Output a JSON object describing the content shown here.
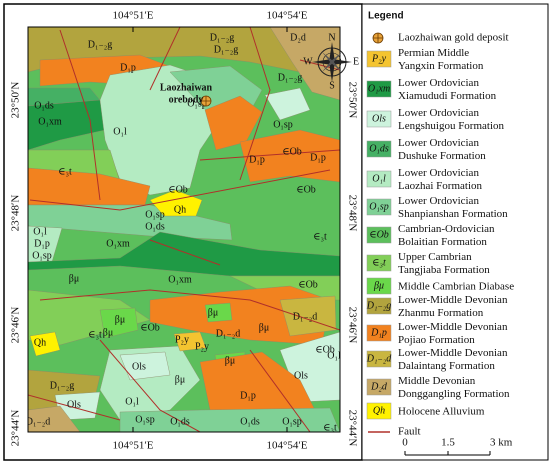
{
  "map": {
    "top_labels": [
      "104°51′E",
      "104°54′E"
    ],
    "bottom_labels": [
      "104°51′E",
      "104°54′E"
    ],
    "left_labels": [
      "23°50′N",
      "23°48′N",
      "23°46′N",
      "23°44′N"
    ],
    "right_labels": [
      "23°50′N",
      "23°48′N",
      "23°46′N",
      "23°44′N"
    ],
    "orebody_label": [
      "Laozhaiwan",
      "orebody"
    ],
    "compass": [
      "N",
      "E",
      "S",
      "W"
    ],
    "unit_labels": [
      "D₁₋₂g",
      "D₁₋₂g",
      "D₁₋₂g",
      "D₂d",
      "D₁p",
      "D₁₋₂g",
      "O₁ds",
      "O₁xm",
      "O₁l",
      "O₁sp",
      "O₁sp",
      "∈Ob",
      "D₁p",
      "D₁p",
      "∈₃t",
      "∈Ob",
      "∈Ob",
      "Qh",
      "O₁sp",
      "O₁ds",
      "O₁xm",
      "O₁l",
      "D₁p",
      "O₁sp",
      "∈₃t",
      "O₁xm",
      "∈Ob",
      "βμ",
      "βμ",
      "βμ",
      "βμ",
      "βμ",
      "D₁₋₂d",
      "D₁₋₂d",
      "∈₃t",
      "∈Ob",
      "P₂y",
      "P₂y",
      "Qh",
      "∈Ob",
      "βμ",
      "Ols",
      "βμ",
      "Ols",
      "O₁l",
      "D₁p",
      "D₁₋₂g",
      "Ols",
      "O₁l",
      "D₁₋₂d",
      "O₁sp",
      "O₁ds",
      "O₁ds",
      "O₁sp",
      "∈₃t"
    ]
  },
  "legend": {
    "title": "Legend",
    "items": [
      {
        "label": [
          "Laozhaiwan gold deposit"
        ],
        "color": "#e8a33a"
      },
      {
        "symbol": "P₂y",
        "label": [
          "Permian Middle",
          "Yangxin Formation"
        ],
        "color": "#f4c430"
      },
      {
        "symbol": "O₁xm",
        "label": [
          "Lower Ordovician",
          "Xiamududi Formation"
        ],
        "color": "#1f9a45"
      },
      {
        "symbol": "Ols",
        "label": [
          "Lower Ordovician",
          "Lengshuigou Formation"
        ],
        "color": "#cdf3dd"
      },
      {
        "symbol": "O₁ds",
        "label": [
          "Lower Ordovician",
          "Dushuke Formation"
        ],
        "color": "#45b064"
      },
      {
        "symbol": "O₁l",
        "label": [
          "Lower Ordovician",
          "Laozhai Formation"
        ],
        "color": "#b4ebc2"
      },
      {
        "symbol": "O₁sp",
        "label": [
          "Lower Ordovician",
          "Shanpianshan Formation"
        ],
        "color": "#7fd196"
      },
      {
        "symbol": "∈Ob",
        "label": [
          "Cambrian-Ordovician",
          "Bolaitian Formation"
        ],
        "color": "#5cbf5c"
      },
      {
        "symbol": "∈₃t",
        "label": [
          "Upper Cambrian",
          "Tangjiaba Formation"
        ],
        "color": "#82cf58"
      },
      {
        "symbol": "βμ",
        "label": [
          "Middle Cambrian Diabase"
        ],
        "color": "#6ad84a"
      },
      {
        "symbol": "D₁₋₂g",
        "label": [
          "Lower-Middle Devonian",
          "Zhanmu Formation"
        ],
        "color": "#b2a43e"
      },
      {
        "symbol": "D₁p",
        "label": [
          "Lower-Middle Devonian",
          "Pojiao Formation"
        ],
        "color": "#f2821f"
      },
      {
        "symbol": "D₁₋₂d",
        "label": [
          "Lower-Middle Devonian",
          "Dalaintang Formation"
        ],
        "color": "#c9b640"
      },
      {
        "symbol": "D₂d",
        "label": [
          "Middle Devonian",
          "Donggangling Formation"
        ],
        "color": "#c6a866"
      },
      {
        "symbol": "Qh",
        "label": [
          "Holocene Alluvium"
        ],
        "color": "#fff200"
      },
      {
        "label": [
          "Fault"
        ],
        "color": "#b0302a"
      }
    ],
    "scale": [
      "0",
      "1.5",
      "3 km"
    ]
  }
}
